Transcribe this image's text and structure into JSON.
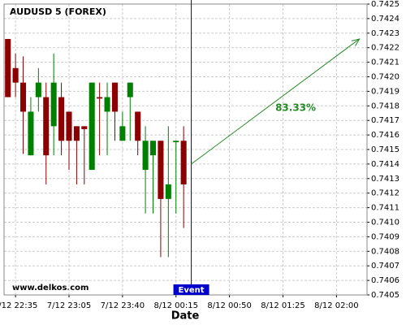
{
  "chart_data": {
    "type": "candlestick",
    "title": "AUDUSD 5 (FOREX)",
    "xlabel": "Date",
    "watermark": "www.delkos.com",
    "x": [
      0,
      1,
      2,
      3,
      4,
      5,
      6,
      7,
      8,
      9,
      10,
      11,
      12,
      13,
      14,
      15,
      16,
      17,
      18,
      19,
      20,
      21,
      22,
      23
    ],
    "open": [
      0.74226,
      0.74206,
      0.74196,
      0.74146,
      0.74186,
      0.74186,
      0.74166,
      0.74186,
      0.74176,
      0.74166,
      0.74166,
      0.74136,
      0.74186,
      0.74176,
      0.74196,
      0.74156,
      0.74186,
      0.74176,
      0.74136,
      0.74146,
      0.74156,
      0.74116,
      0.74155,
      0.74156
    ],
    "high": [
      0.74226,
      0.74216,
      0.74214,
      0.74186,
      0.74206,
      0.74196,
      0.74216,
      0.74196,
      0.74176,
      0.74166,
      0.74166,
      0.74196,
      0.74196,
      0.74196,
      0.74196,
      0.74176,
      0.74196,
      0.74176,
      0.74166,
      0.74156,
      0.74156,
      0.74166,
      0.74156,
      0.74166
    ],
    "low": [
      0.74186,
      0.74186,
      0.74147,
      0.74146,
      0.74176,
      0.74126,
      0.74146,
      0.74146,
      0.74136,
      0.74126,
      0.74126,
      0.74136,
      0.74146,
      0.74146,
      0.74156,
      0.74156,
      0.74156,
      0.74146,
      0.74106,
      0.74106,
      0.74076,
      0.74076,
      0.74106,
      0.74096
    ],
    "close": [
      0.74186,
      0.74196,
      0.74176,
      0.74176,
      0.74196,
      0.74146,
      0.74196,
      0.74156,
      0.74156,
      0.74156,
      0.74164,
      0.74196,
      0.74185,
      0.74186,
      0.74176,
      0.74166,
      0.74196,
      0.74156,
      0.74156,
      0.74156,
      0.74116,
      0.74126,
      0.74156,
      0.74126
    ],
    "up_color": "#008000",
    "down_color": "#8b0000",
    "xlim": [
      -0.5,
      47
    ],
    "xticks": [
      {
        "value": 1,
        "label": "7/12 22:35"
      },
      {
        "value": 8,
        "label": "7/12 23:05"
      },
      {
        "value": 15,
        "label": "7/12 23:40"
      },
      {
        "value": 22,
        "label": "8/12 00:15"
      },
      {
        "value": 29,
        "label": "8/12 00:50"
      },
      {
        "value": 36,
        "label": "8/12 01:25"
      },
      {
        "value": 43,
        "label": "8/12 02:00"
      }
    ],
    "ylim": [
      0.7405,
      0.7425
    ],
    "yticks": [
      0.7405,
      0.7406,
      0.7407,
      0.7408,
      0.7409,
      {
        "value": 0.741,
        "label": "0.7410"
      },
      0.7411,
      0.7412,
      0.7413,
      0.7414,
      0.7415,
      0.7416,
      0.7417,
      0.7418,
      0.7419,
      {
        "value": 0.742,
        "label": "0.7420"
      },
      0.7421,
      0.7422,
      0.7423,
      0.7424,
      0.7425
    ],
    "grid": true,
    "event": {
      "x": 24,
      "label": "Event",
      "color": "#0000cc"
    },
    "arrow": {
      "from": [
        24,
        0.7414
      ],
      "to": [
        46,
        0.74226
      ],
      "label": "83.33%",
      "color": "#228b22"
    }
  }
}
